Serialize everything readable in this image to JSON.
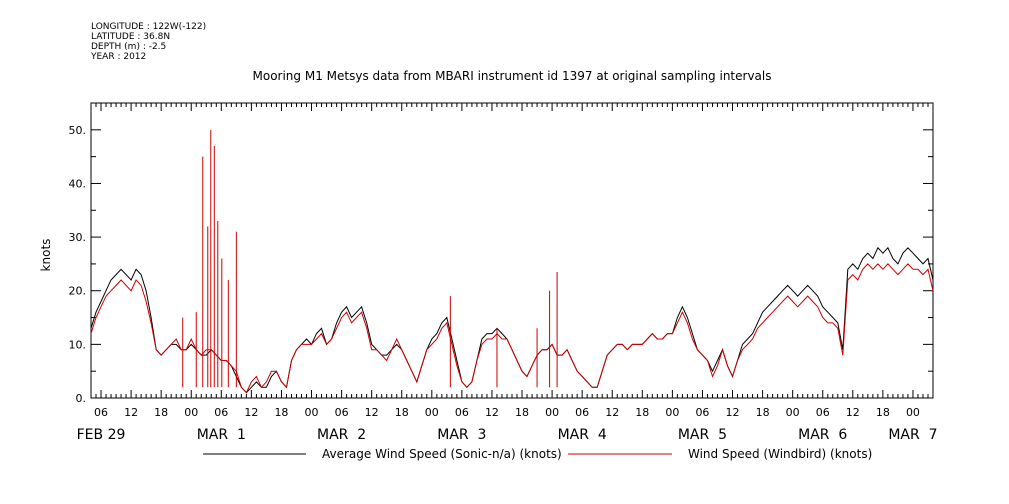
{
  "meta": {
    "longitude": "LONGITUDE : 122W(-122)",
    "latitude": "LATITUDE : 36.8N",
    "depth": "DEPTH (m) : -2.5",
    "year": "YEAR : 2012"
  },
  "chart_data": {
    "type": "line",
    "title": "Mooring M1 Metsys data from MBARI instrument id 1397 at original sampling intervals",
    "ylabel": "knots",
    "xlabel": "",
    "xlim_hours": [
      4,
      172
    ],
    "ylim": [
      0,
      55
    ],
    "yticks": [
      0,
      10,
      20,
      30,
      40,
      50
    ],
    "ytick_labels": [
      "0.",
      "10.",
      "20.",
      "30.",
      "40.",
      "50."
    ],
    "xtick_labels": [
      "06",
      "12",
      "18",
      "00",
      "06",
      "12",
      "18",
      "00",
      "06",
      "12",
      "18",
      "00",
      "06",
      "12",
      "18",
      "00",
      "06",
      "12",
      "18",
      "00",
      "06",
      "12",
      "18",
      "00",
      "06",
      "12",
      "18",
      "00",
      "06",
      "12",
      "18",
      "00"
    ],
    "date_labels": [
      {
        "text": "FEB 29",
        "hour": 6
      },
      {
        "text": "MAR  1",
        "hour": 30
      },
      {
        "text": "MAR  2",
        "hour": 54
      },
      {
        "text": "MAR  3",
        "hour": 78
      },
      {
        "text": "MAR  4",
        "hour": 102
      },
      {
        "text": "MAR  5",
        "hour": 126
      },
      {
        "text": "MAR  6",
        "hour": 150
      },
      {
        "text": "MAR  7",
        "hour": 168
      }
    ],
    "grid": false,
    "legend_placement": "bottom",
    "series": [
      {
        "name": "Average Wind Speed (Sonic-n/a) (knots)",
        "color": "#000000",
        "x": [
          4,
          5,
          6,
          7,
          8,
          9,
          10,
          11,
          12,
          13,
          14,
          15,
          16,
          17,
          18,
          19,
          20,
          21,
          22,
          23,
          24,
          25,
          26,
          27,
          28,
          29,
          30,
          31,
          32,
          33,
          34,
          35,
          36,
          37,
          38,
          39,
          40,
          41,
          42,
          43,
          44,
          45,
          46,
          47,
          48,
          49,
          50,
          51,
          52,
          53,
          54,
          55,
          56,
          57,
          58,
          59,
          60,
          61,
          62,
          63,
          64,
          65,
          66,
          67,
          68,
          69,
          70,
          71,
          72,
          73,
          74,
          75,
          76,
          77,
          78,
          79,
          80,
          81,
          82,
          83,
          84,
          85,
          86,
          87,
          88,
          89,
          90,
          91,
          92,
          93,
          94,
          95,
          96,
          97,
          98,
          99,
          100,
          101,
          102,
          103,
          104,
          105,
          106,
          107,
          108,
          109,
          110,
          111,
          112,
          113,
          114,
          115,
          116,
          117,
          118,
          119,
          120,
          121,
          122,
          123,
          124,
          125,
          126,
          127,
          128,
          129,
          130,
          131,
          132,
          133,
          134,
          135,
          136,
          137,
          138,
          139,
          140,
          141,
          142,
          143,
          144,
          145,
          146,
          147,
          148,
          149,
          150,
          151,
          152,
          153,
          154,
          155,
          156,
          157,
          158,
          159,
          160,
          161,
          162,
          163,
          164,
          165,
          166,
          167,
          168,
          169,
          170,
          171,
          172
        ],
        "values": [
          13,
          16,
          18,
          20,
          22,
          23,
          24,
          23,
          22,
          24,
          23,
          20,
          15,
          9,
          8,
          9,
          10,
          10,
          9,
          9,
          10,
          9,
          8,
          8,
          9,
          8,
          7,
          7,
          6,
          4,
          2,
          1,
          2,
          3,
          2,
          2,
          4,
          5,
          3,
          2,
          7,
          9,
          10,
          11,
          10,
          12,
          13,
          10,
          11,
          14,
          16,
          17,
          15,
          16,
          17,
          14,
          10,
          9,
          8,
          8,
          9,
          10,
          9,
          7,
          5,
          3,
          6,
          9,
          11,
          12,
          14,
          15,
          11,
          7,
          3,
          2,
          3,
          7,
          11,
          12,
          12,
          13,
          12,
          11,
          9,
          7,
          5,
          4,
          6,
          8,
          9,
          9,
          10,
          8,
          8,
          9,
          7,
          5,
          4,
          3,
          2,
          2,
          5,
          8,
          9,
          10,
          10,
          9,
          10,
          10,
          10,
          11,
          12,
          11,
          11,
          12,
          12,
          15,
          17,
          15,
          12,
          9,
          8,
          7,
          5,
          7,
          9,
          6,
          4,
          7,
          10,
          11,
          12,
          14,
          16,
          17,
          18,
          19,
          20,
          21,
          20,
          19,
          20,
          21,
          20,
          19,
          17,
          16,
          15,
          14,
          9,
          24,
          25,
          24,
          26,
          27,
          26,
          28,
          27,
          28,
          26,
          25,
          27,
          28,
          27,
          26,
          25,
          26,
          22
        ]
      },
      {
        "name": "Wind Speed (Windbird) (knots)",
        "color": "#cc0000",
        "x": [
          4,
          5,
          6,
          7,
          8,
          9,
          10,
          11,
          12,
          13,
          14,
          15,
          16,
          17,
          18,
          19,
          20,
          21,
          22,
          23,
          24,
          25,
          26,
          27,
          28,
          29,
          30,
          31,
          32,
          33,
          34,
          35,
          36,
          37,
          38,
          39,
          40,
          41,
          42,
          43,
          44,
          45,
          46,
          47,
          48,
          49,
          50,
          51,
          52,
          53,
          54,
          55,
          56,
          57,
          58,
          59,
          60,
          61,
          62,
          63,
          64,
          65,
          66,
          67,
          68,
          69,
          70,
          71,
          72,
          73,
          74,
          75,
          76,
          77,
          78,
          79,
          80,
          81,
          82,
          83,
          84,
          85,
          86,
          87,
          88,
          89,
          90,
          91,
          92,
          93,
          94,
          95,
          96,
          97,
          98,
          99,
          100,
          101,
          102,
          103,
          104,
          105,
          106,
          107,
          108,
          109,
          110,
          111,
          112,
          113,
          114,
          115,
          116,
          117,
          118,
          119,
          120,
          121,
          122,
          123,
          124,
          125,
          126,
          127,
          128,
          129,
          130,
          131,
          132,
          133,
          134,
          135,
          136,
          137,
          138,
          139,
          140,
          141,
          142,
          143,
          144,
          145,
          146,
          147,
          148,
          149,
          150,
          151,
          152,
          153,
          154,
          155,
          156,
          157,
          158,
          159,
          160,
          161,
          162,
          163,
          164,
          165,
          166,
          167,
          168,
          169,
          170,
          171,
          172
        ],
        "values": [
          12,
          15,
          17,
          19,
          20,
          21,
          22,
          21,
          20,
          22,
          21,
          18,
          14,
          9,
          8,
          9,
          10,
          11,
          9,
          9,
          11,
          9,
          8,
          9,
          9,
          8,
          7,
          7,
          6,
          5,
          2,
          1,
          3,
          4,
          2,
          3,
          5,
          5,
          3,
          2,
          7,
          9,
          10,
          10,
          10,
          11,
          12,
          10,
          11,
          13,
          15,
          16,
          14,
          15,
          16,
          13,
          9,
          9,
          8,
          7,
          9,
          11,
          9,
          7,
          5,
          3,
          6,
          9,
          10,
          11,
          13,
          14,
          10,
          6,
          3,
          2,
          3,
          7,
          10,
          11,
          11,
          12,
          11,
          11,
          9,
          7,
          5,
          4,
          6,
          8,
          9,
          9,
          10,
          8,
          8,
          9,
          7,
          5,
          4,
          3,
          2,
          2,
          5,
          8,
          9,
          10,
          10,
          9,
          10,
          10,
          10,
          11,
          12,
          11,
          11,
          12,
          12,
          14,
          16,
          14,
          11,
          9,
          8,
          7,
          4,
          6,
          9,
          6,
          4,
          7,
          9,
          10,
          11,
          13,
          14,
          15,
          16,
          17,
          18,
          19,
          18,
          17,
          18,
          19,
          18,
          17,
          15,
          14,
          14,
          13,
          8,
          22,
          23,
          22,
          24,
          25,
          24,
          25,
          24,
          25,
          24,
          23,
          24,
          25,
          24,
          24,
          23,
          24,
          20
        ]
      }
    ],
    "spikes": [
      {
        "x": 26.3,
        "y": 45
      },
      {
        "x": 27.3,
        "y": 32
      },
      {
        "x": 27.9,
        "y": 50
      },
      {
        "x": 28.6,
        "y": 47
      },
      {
        "x": 29.3,
        "y": 33
      },
      {
        "x": 30.1,
        "y": 26
      },
      {
        "x": 31.4,
        "y": 22
      },
      {
        "x": 33.0,
        "y": 31
      },
      {
        "x": 25.0,
        "y": 16
      },
      {
        "x": 22.3,
        "y": 15
      },
      {
        "x": 75.7,
        "y": 19
      },
      {
        "x": 95.5,
        "y": 20
      },
      {
        "x": 97.0,
        "y": 23.5
      },
      {
        "x": 93.0,
        "y": 13
      },
      {
        "x": 85.0,
        "y": 13
      }
    ]
  },
  "colors": {
    "axis": "#000000",
    "sonic": "#000000",
    "windbird": "#cc0000"
  }
}
